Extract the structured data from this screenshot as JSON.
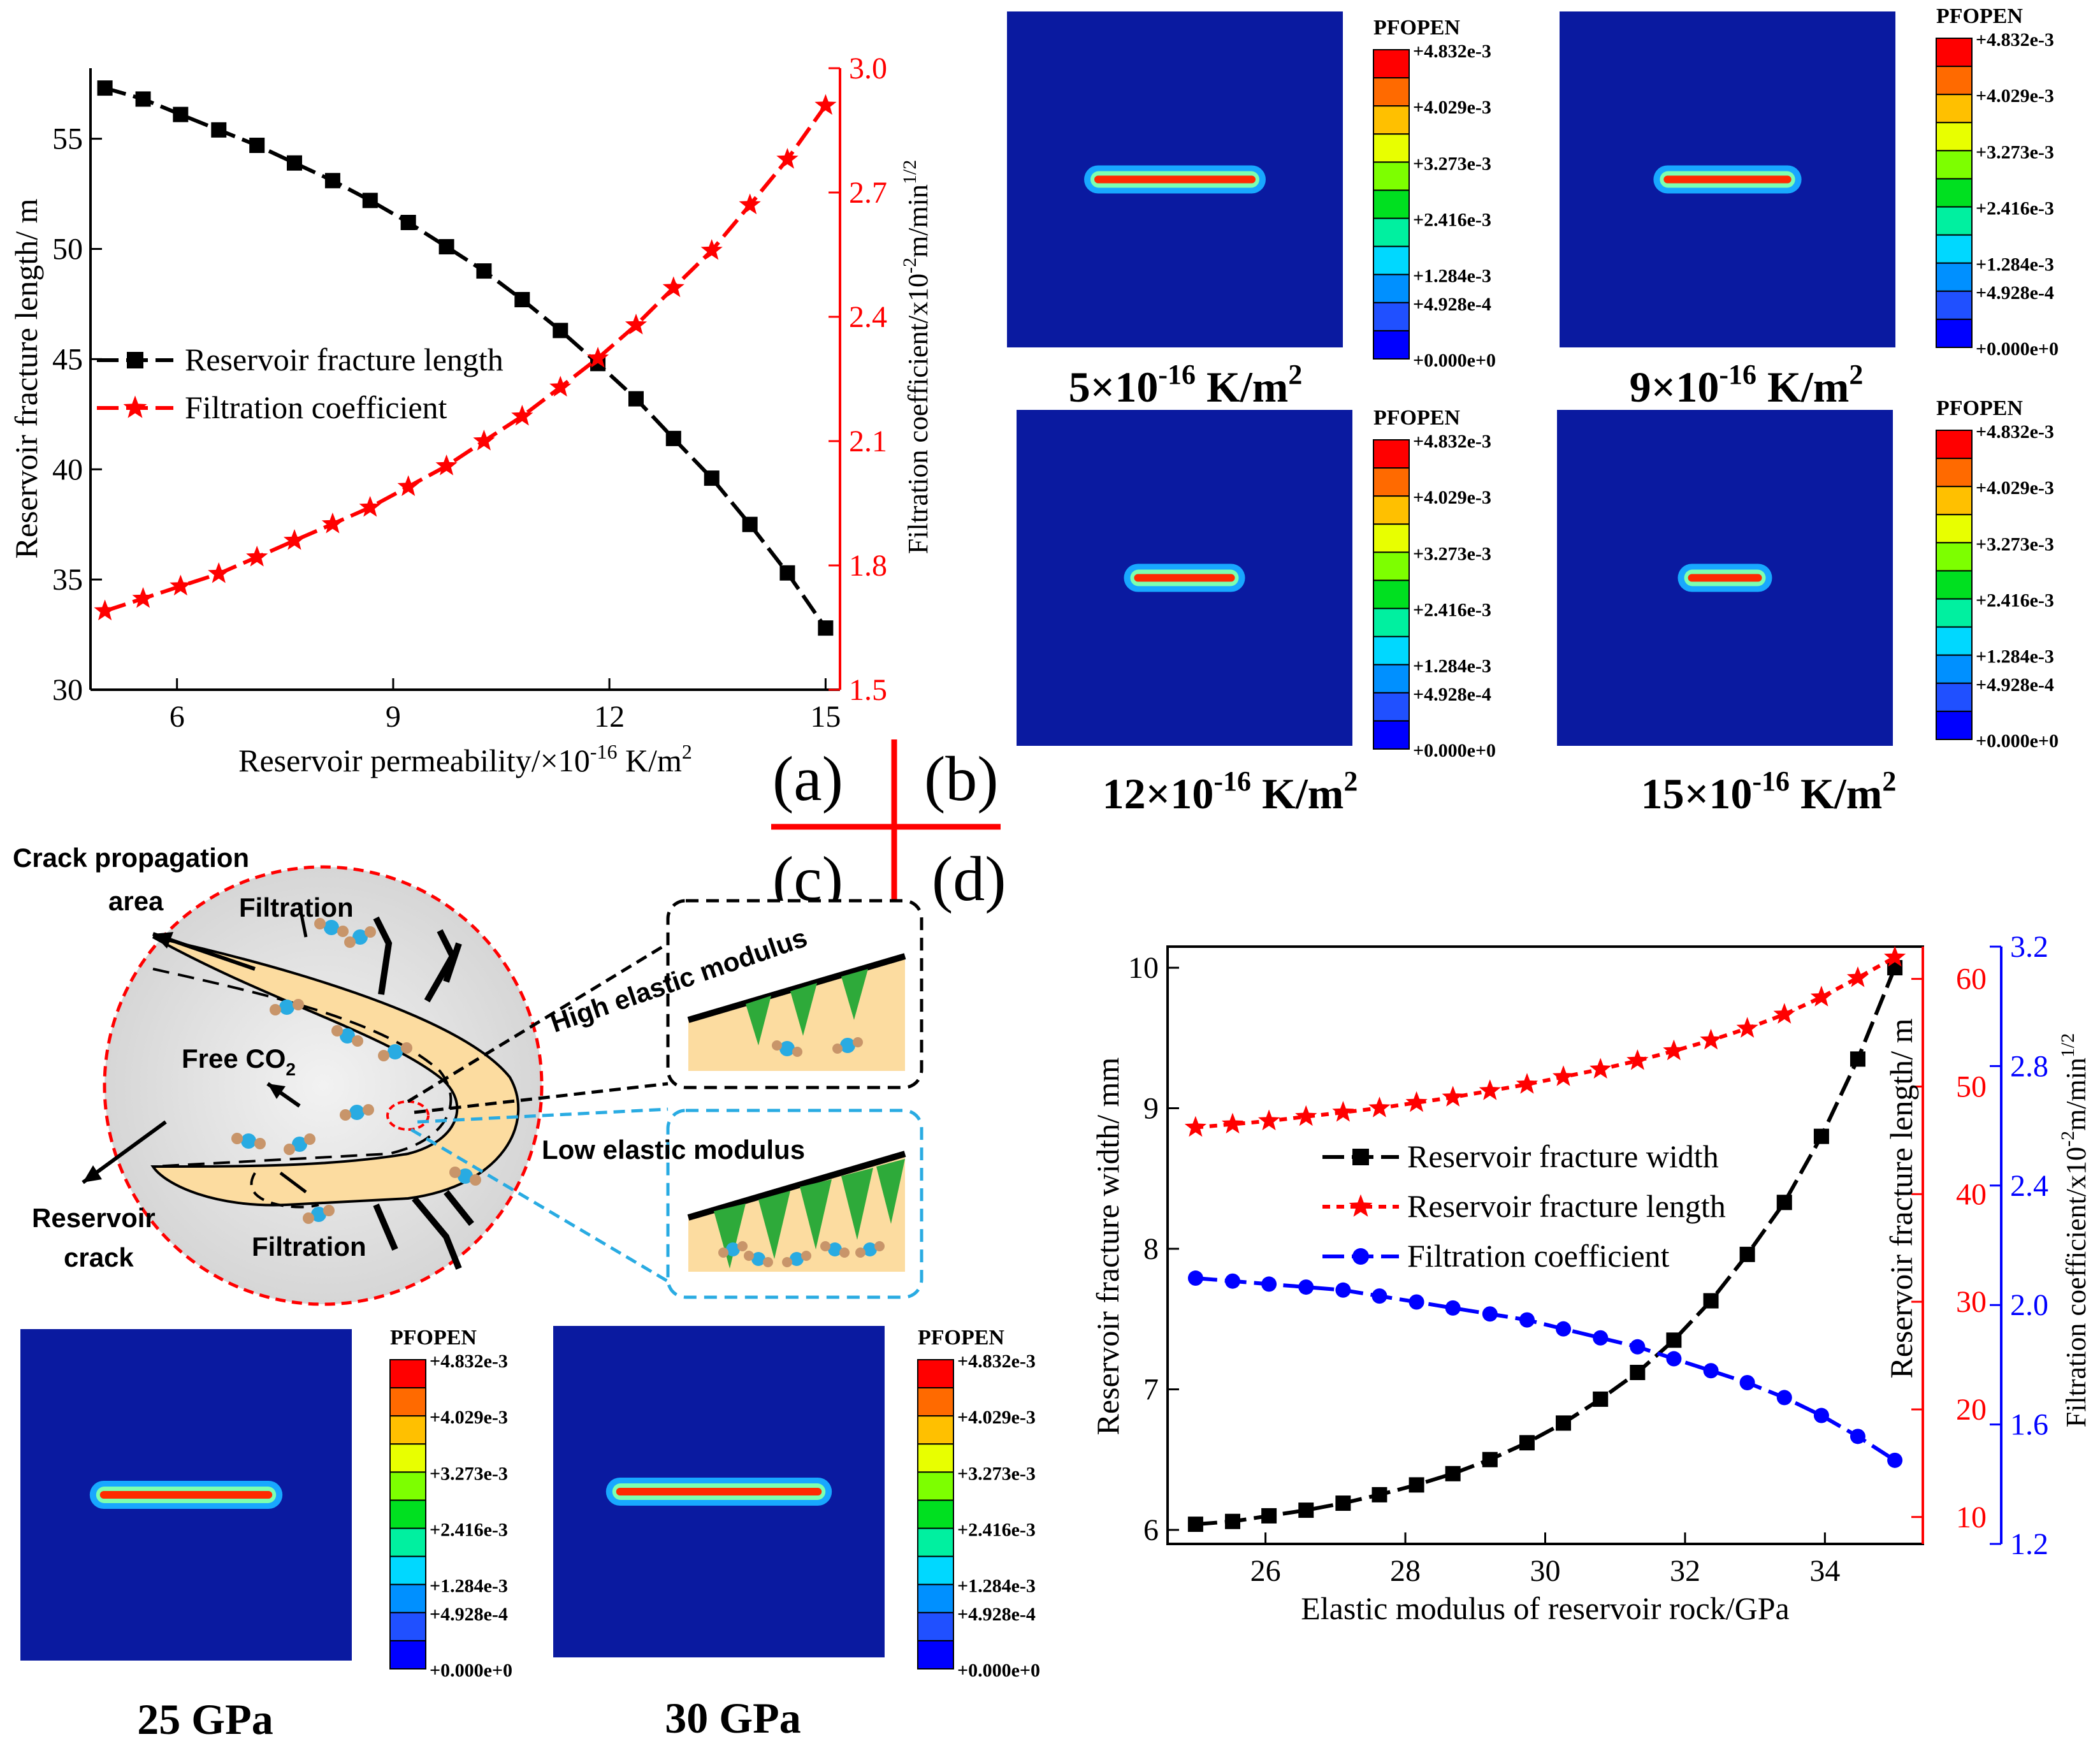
{
  "chart_data": [
    {
      "panel": "a",
      "type": "line",
      "xlabel_pre": "Reservoir permeability/×10",
      "xlabel_sup": "-16",
      "xlabel_post": " K/m",
      "xlabel_sup2": "2",
      "ylabel_left": "Reservoir fracture length/ m",
      "ylabel_right_pre": "Filtration coefficient/x10",
      "ylabel_right_sup": "-2",
      "ylabel_right_post": "m/min",
      "ylabel_right_sup2": "1/2",
      "xlim": [
        4.8,
        15.2
      ],
      "ylim_left": [
        30,
        58.2
      ],
      "ylim_right": [
        1.5,
        3.0
      ],
      "xticks": [
        6,
        9,
        12,
        15
      ],
      "yticks_left": [
        30,
        35,
        40,
        45,
        50,
        55
      ],
      "yticks_right": [
        "1.5",
        "1.8",
        "2.1",
        "2.4",
        "2.7",
        "3.0"
      ],
      "x": [
        5.0,
        5.53,
        6.05,
        6.58,
        7.11,
        7.63,
        8.16,
        8.68,
        9.21,
        9.74,
        10.26,
        10.79,
        11.32,
        11.84,
        12.37,
        12.89,
        13.42,
        13.95,
        14.47,
        15.0
      ],
      "series": [
        {
          "name": "Reservoir fracture length",
          "axis": "left",
          "color": "#000000",
          "marker": "square",
          "values": [
            57.3,
            56.8,
            56.1,
            55.4,
            54.7,
            53.9,
            53.1,
            52.2,
            51.2,
            50.1,
            49.0,
            47.7,
            46.3,
            44.8,
            43.2,
            41.4,
            39.6,
            37.5,
            35.3,
            32.8
          ]
        },
        {
          "name": "Filtration coefficient",
          "axis": "right",
          "color": "#ff0000",
          "marker": "star",
          "values": [
            1.69,
            1.72,
            1.75,
            1.78,
            1.82,
            1.86,
            1.9,
            1.94,
            1.99,
            2.04,
            2.1,
            2.16,
            2.23,
            2.3,
            2.38,
            2.47,
            2.56,
            2.67,
            2.78,
            2.91
          ]
        }
      ]
    },
    {
      "panel": "d",
      "type": "line",
      "xlabel": "Elastic modulus of reservoir rock/GPa",
      "ylabel_left": "Reservoir fracture width/ mm",
      "ylabel_mid": "Reservoir fracture length/ m",
      "ylabel_right_pre": "Filtration coefficient/x10",
      "ylabel_right_sup": "-2",
      "ylabel_right_post": "m/min",
      "ylabel_right_sup2": "1/2",
      "xlim": [
        24.6,
        35.4
      ],
      "ylim_left": [
        5.9,
        10.15
      ],
      "ylim_mid": [
        7.5,
        63.0
      ],
      "ylim_right": [
        1.2,
        3.2
      ],
      "xticks": [
        26,
        28,
        30,
        32,
        34
      ],
      "yticks_left": [
        6,
        7,
        8,
        9,
        10
      ],
      "yticks_mid": [
        10,
        20,
        30,
        40,
        50,
        60
      ],
      "yticks_right": [
        "1.2",
        "1.6",
        "2.0",
        "2.4",
        "2.8",
        "3.2"
      ],
      "x": [
        25.0,
        25.53,
        26.05,
        26.58,
        27.11,
        27.63,
        28.16,
        28.68,
        29.21,
        29.74,
        30.26,
        30.79,
        31.32,
        31.84,
        32.37,
        32.89,
        33.42,
        33.95,
        34.47,
        35.0
      ],
      "series": [
        {
          "name": "Reservoir fracture width",
          "axis": "left",
          "color": "#000000",
          "marker": "square",
          "values": [
            6.04,
            6.06,
            6.1,
            6.14,
            6.19,
            6.25,
            6.32,
            6.4,
            6.5,
            6.62,
            6.76,
            6.93,
            7.12,
            7.35,
            7.63,
            7.96,
            8.33,
            8.8,
            9.35,
            10.0
          ]
        },
        {
          "name": "Reservoir fracture length",
          "axis": "mid",
          "color": "#ff0000",
          "marker": "star",
          "values": [
            46.2,
            46.5,
            46.8,
            47.2,
            47.6,
            48.0,
            48.5,
            49.0,
            49.6,
            50.2,
            50.9,
            51.6,
            52.4,
            53.3,
            54.3,
            55.4,
            56.7,
            58.3,
            60.1,
            62.0
          ]
        },
        {
          "name": "Filtration coefficient",
          "axis": "right",
          "color": "#0000ff",
          "marker": "circle",
          "values": [
            2.09,
            2.08,
            2.07,
            2.06,
            2.05,
            2.03,
            2.01,
            1.99,
            1.97,
            1.95,
            1.92,
            1.89,
            1.86,
            1.82,
            1.78,
            1.74,
            1.69,
            1.63,
            1.56,
            1.48
          ]
        }
      ]
    }
  ],
  "contours": {
    "legend_title": "PFOPEN",
    "legend_values": [
      "+4.832e-3",
      "+4.029e-3",
      "+3.273e-3",
      "+2.416e-3",
      "+1.284e-3",
      "+4.928e-4",
      "+0.000e+0"
    ],
    "band_colors": [
      "#ff0000",
      "#ff6a00",
      "#ffc000",
      "#e8ff00",
      "#7dff00",
      "#00e020",
      "#00f0a0",
      "#00d8ff",
      "#0090ff",
      "#2050ff",
      "#0000ff"
    ],
    "permeability_panels": [
      {
        "value": "5",
        "exp": "-16",
        "unit": " K/m",
        "unit_sup": "2",
        "crack_fraction": 0.48
      },
      {
        "value": "9",
        "exp": "-16",
        "unit": " K/m",
        "unit_sup": "2",
        "crack_fraction": 0.38
      },
      {
        "value": "12",
        "exp": "-16",
        "unit": " K/m",
        "unit_sup": "2",
        "crack_fraction": 0.3
      },
      {
        "value": "15",
        "exp": "-16",
        "unit": " K/m",
        "unit_sup": "2",
        "crack_fraction": 0.22
      }
    ],
    "modulus_panels": [
      {
        "label": "25 GPa",
        "crack_fraction": 0.52
      },
      {
        "label": "30 GPa",
        "crack_fraction": 0.62
      }
    ]
  },
  "panel_labels": {
    "a": "(a)",
    "b": "(b)",
    "c": "(c)",
    "d": "(d)"
  },
  "schematic": {
    "crack_area_line1": "Crack propagation",
    "crack_area_line2": "area",
    "filtration_top": "Filtration",
    "filtration_bottom": "Filtration",
    "free_co2": "Free CO",
    "free_co2_sub": "2",
    "reservoir_crack_line1": "Reservoir",
    "reservoir_crack_line2": "crack",
    "high_modulus": "High elastic modulus",
    "low_modulus": "Low elastic modulus"
  },
  "colors": {
    "black": "#000000",
    "red": "#ff0000",
    "blue": "#0000ff",
    "contour_bg": "#0a1aa0",
    "sand": "#fcdca0",
    "cyan_dash": "#29abe2"
  }
}
